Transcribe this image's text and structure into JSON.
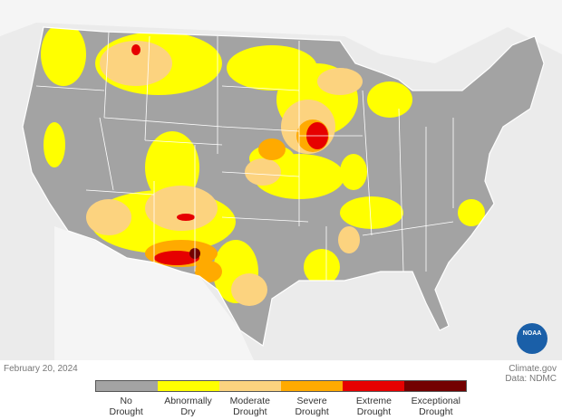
{
  "date": "February 20, 2024",
  "credit": "Climate.gov",
  "source": "Data: NDMC",
  "logo": "NOAA",
  "legend": [
    {
      "label": "No Drought",
      "color": "#a3a3a3"
    },
    {
      "label": "Abnormally Dry",
      "color": "#ffff00"
    },
    {
      "label": "Moderate Drought",
      "color": "#fcd37f"
    },
    {
      "label": "Severe Drought",
      "color": "#ffaa00"
    },
    {
      "label": "Extreme Drought",
      "color": "#e60000"
    },
    {
      "label": "Exceptional Drought",
      "color": "#730000"
    }
  ]
}
